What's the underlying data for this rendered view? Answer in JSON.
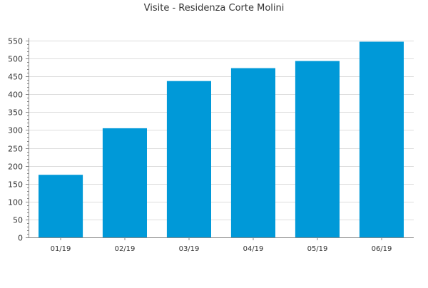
{
  "chart_data": {
    "type": "bar",
    "title": "Visite - Residenza Corte Molini",
    "xlabel": "",
    "ylabel": "",
    "categories": [
      "01/19",
      "02/19",
      "03/19",
      "04/19",
      "05/19",
      "06/19"
    ],
    "values": [
      175,
      305,
      437,
      473,
      493,
      547
    ],
    "ylim": [
      0,
      550
    ],
    "yticks": [
      0,
      50,
      100,
      150,
      200,
      250,
      300,
      350,
      400,
      450,
      500,
      550
    ],
    "grid": true,
    "legend": "none",
    "bar_color": "#0099d8",
    "grid_color": "#dddddd",
    "axis_color": "#888888"
  }
}
